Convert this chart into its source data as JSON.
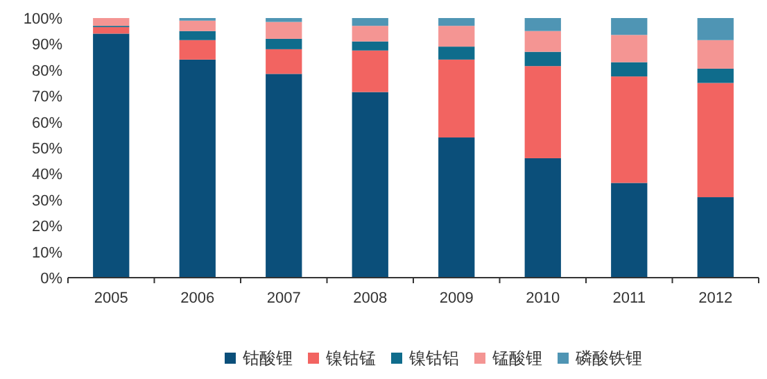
{
  "chart_data": {
    "type": "bar",
    "stacked": true,
    "categories": [
      "2005",
      "2006",
      "2007",
      "2008",
      "2009",
      "2010",
      "2011",
      "2012"
    ],
    "series": [
      {
        "name": "钴酸锂",
        "color": "#0b4f7a",
        "values": [
          94,
          84,
          78.5,
          71.5,
          54,
          46,
          36.5,
          31
        ]
      },
      {
        "name": "镍钴锰",
        "color": "#f26461",
        "values": [
          2.5,
          7.5,
          9.5,
          16,
          30,
          35.5,
          41,
          44
        ]
      },
      {
        "name": "镍钴铝",
        "color": "#0f6c8c",
        "values": [
          0.5,
          3.5,
          4,
          3.5,
          5,
          5.5,
          5.5,
          5.5
        ]
      },
      {
        "name": "锰酸锂",
        "color": "#f49593",
        "values": [
          3,
          4,
          6.5,
          6,
          8,
          8,
          10.5,
          11
        ]
      },
      {
        "name": "磷酸铁锂",
        "color": "#4f95b4",
        "values": [
          0,
          1,
          1.5,
          3,
          3,
          5,
          6.5,
          8.5
        ]
      }
    ],
    "ylim": [
      0,
      100
    ],
    "yticks": [
      {
        "value": 0,
        "label": "0%"
      },
      {
        "value": 10,
        "label": "10%"
      },
      {
        "value": 20,
        "label": "20%"
      },
      {
        "value": 30,
        "label": "30%"
      },
      {
        "value": 40,
        "label": "40%"
      },
      {
        "value": 50,
        "label": "50%"
      },
      {
        "value": 60,
        "label": "60%"
      },
      {
        "value": 70,
        "label": "70%"
      },
      {
        "value": 80,
        "label": "80%"
      },
      {
        "value": 90,
        "label": "90%"
      },
      {
        "value": 100,
        "label": "100%"
      }
    ],
    "legend": "bottom"
  }
}
